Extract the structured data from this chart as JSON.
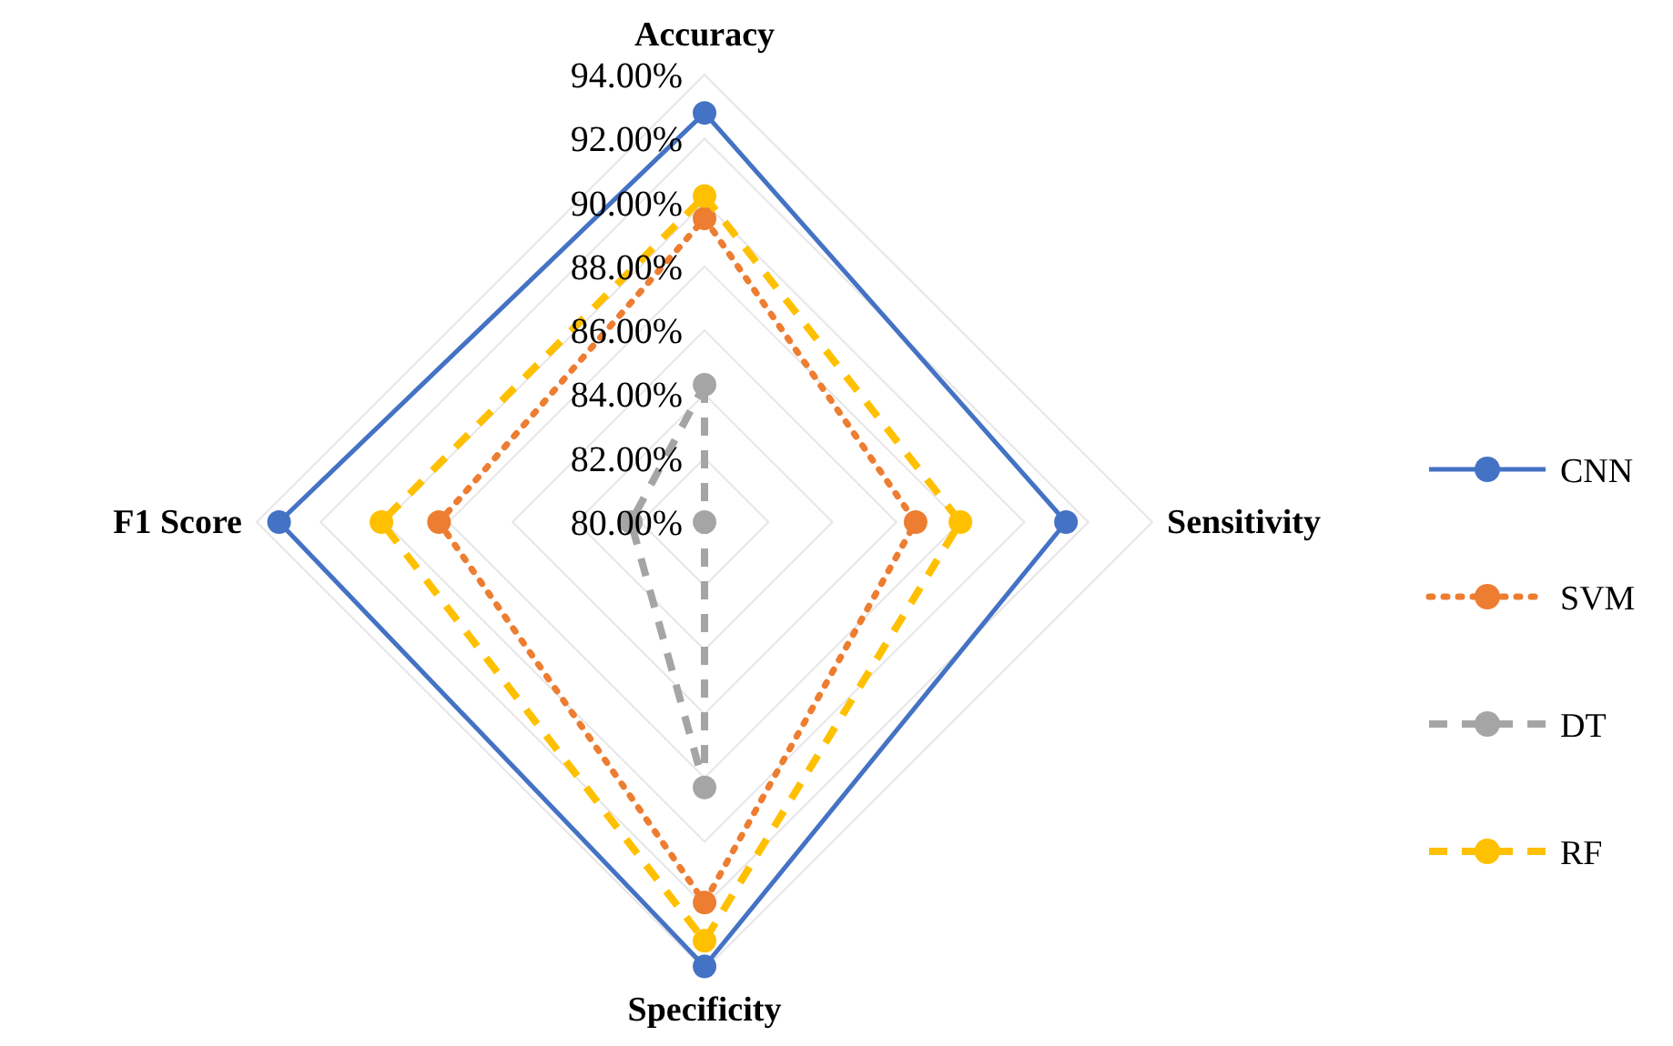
{
  "chart_data": {
    "type": "radar",
    "categories": [
      "Accuracy",
      "Sensitivity",
      "Specificity",
      "F1 Score"
    ],
    "ylim": [
      80,
      94
    ],
    "yticks": [
      {
        "value": 80,
        "label": "80.00%"
      },
      {
        "value": 82,
        "label": "82.00%"
      },
      {
        "value": 84,
        "label": "84.00%"
      },
      {
        "value": 86,
        "label": "86.00%"
      },
      {
        "value": 88,
        "label": "88.00%"
      },
      {
        "value": 90,
        "label": "90.00%"
      },
      {
        "value": 92,
        "label": "92.00%"
      },
      {
        "value": 94,
        "label": "94.00%"
      }
    ],
    "grid": true,
    "legend": "right",
    "marker": "circle",
    "series": [
      {
        "name": "CNN",
        "color": "#4472c4",
        "line_style": "solid",
        "values": [
          92.8,
          91.3,
          93.9,
          93.3
        ]
      },
      {
        "name": "SVM",
        "color": "#ed7d31",
        "line_style": "dotted",
        "values": [
          89.5,
          86.6,
          91.9,
          88.3
        ]
      },
      {
        "name": "DT",
        "color": "#a5a5a5",
        "line_style": "dashed",
        "values": [
          84.3,
          80,
          88.3,
          82.3
        ]
      },
      {
        "name": "RF",
        "color": "#ffc000",
        "line_style": "dashed",
        "values": [
          90.2,
          88.0,
          93.1,
          90.1
        ]
      }
    ]
  }
}
